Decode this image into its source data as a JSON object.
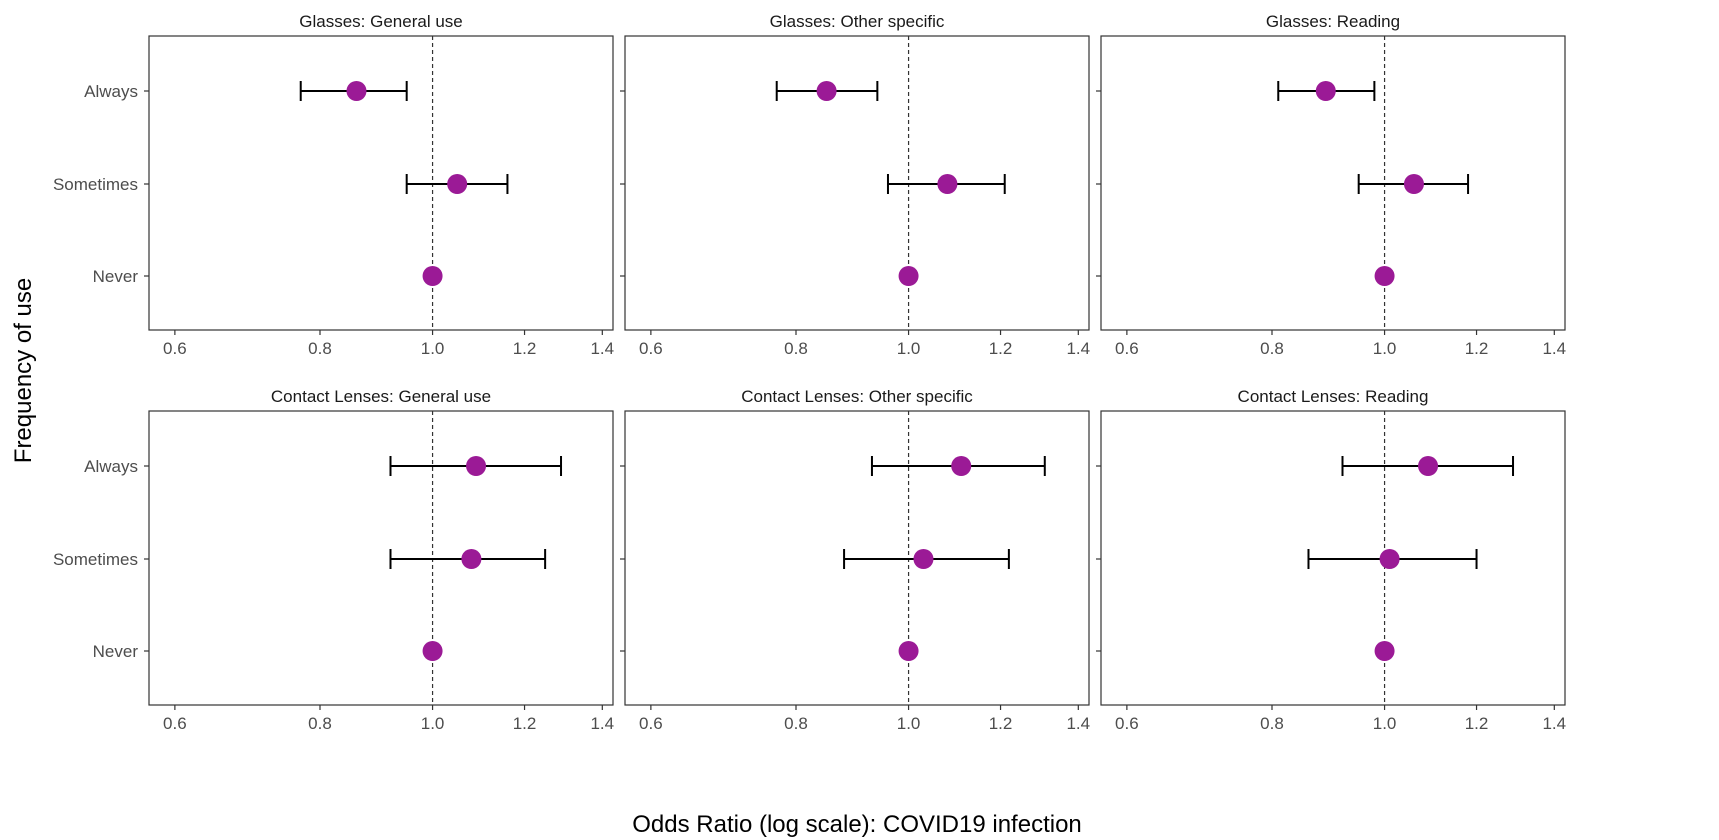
{
  "chart_data": {
    "type": "scatter",
    "xlabel": "Odds Ratio (log scale): COVID19 infection",
    "ylabel": "Frequency of use",
    "x_scale": "log",
    "xlim": [
      0.57,
      1.43
    ],
    "x_ticks": [
      0.6,
      0.8,
      1.0,
      1.2,
      1.4
    ],
    "x_tick_labels": [
      "0.6",
      "0.8",
      "1.0",
      "1.2",
      "1.4"
    ],
    "categories": [
      "Always",
      "Sometimes",
      "Never"
    ],
    "reference_line": 1.0,
    "grid": false,
    "colors": {
      "point": "#9b1a96",
      "errorbar": "#000000",
      "reference": "#333333",
      "frame": "#333333"
    },
    "panels": [
      {
        "title": "Glasses: General use",
        "points": [
          {
            "category": "Always",
            "or": 0.86,
            "lo": 0.77,
            "hi": 0.95
          },
          {
            "category": "Sometimes",
            "or": 1.05,
            "lo": 0.95,
            "hi": 1.16
          },
          {
            "category": "Never",
            "or": 1.0
          }
        ]
      },
      {
        "title": "Glasses: Other specific",
        "points": [
          {
            "category": "Always",
            "or": 0.85,
            "lo": 0.77,
            "hi": 0.94
          },
          {
            "category": "Sometimes",
            "or": 1.08,
            "lo": 0.96,
            "hi": 1.21
          },
          {
            "category": "Never",
            "or": 1.0
          }
        ]
      },
      {
        "title": "Glasses: Reading",
        "points": [
          {
            "category": "Always",
            "or": 0.89,
            "lo": 0.81,
            "hi": 0.98
          },
          {
            "category": "Sometimes",
            "or": 1.06,
            "lo": 0.95,
            "hi": 1.18
          },
          {
            "category": "Never",
            "or": 1.0
          }
        ]
      },
      {
        "title": "Contact Lenses: General use",
        "points": [
          {
            "category": "Always",
            "or": 1.09,
            "lo": 0.92,
            "hi": 1.29
          },
          {
            "category": "Sometimes",
            "or": 1.08,
            "lo": 0.92,
            "hi": 1.25
          },
          {
            "category": "Never",
            "or": 1.0
          }
        ]
      },
      {
        "title": "Contact Lenses: Other specific",
        "points": [
          {
            "category": "Always",
            "or": 1.11,
            "lo": 0.93,
            "hi": 1.31
          },
          {
            "category": "Sometimes",
            "or": 1.03,
            "lo": 0.88,
            "hi": 1.22
          },
          {
            "category": "Never",
            "or": 1.0
          }
        ]
      },
      {
        "title": "Contact Lenses: Reading",
        "points": [
          {
            "category": "Always",
            "or": 1.09,
            "lo": 0.92,
            "hi": 1.29
          },
          {
            "category": "Sometimes",
            "or": 1.01,
            "lo": 0.86,
            "hi": 1.2
          },
          {
            "category": "Never",
            "or": 1.0
          }
        ]
      }
    ]
  }
}
